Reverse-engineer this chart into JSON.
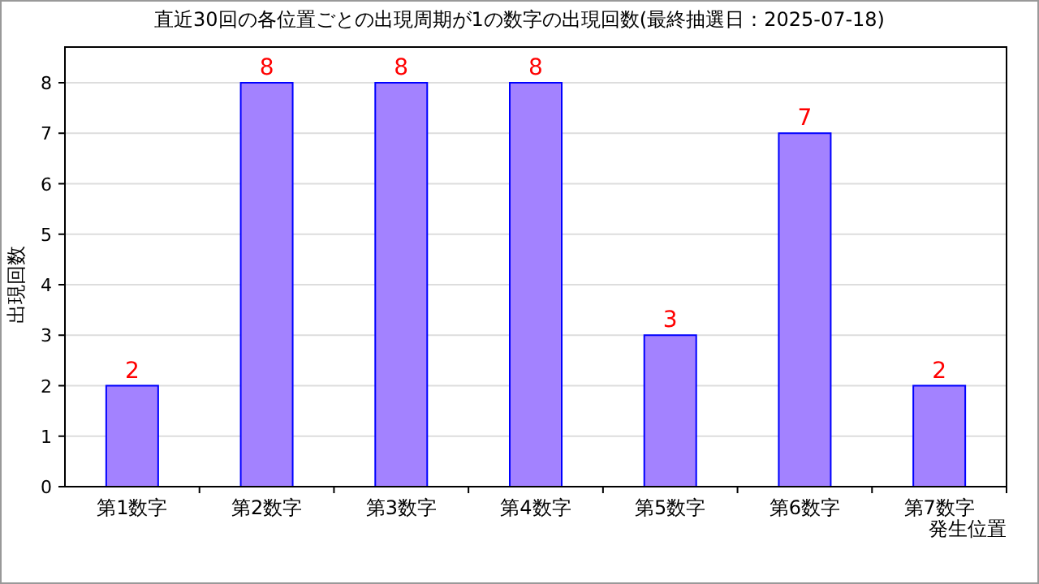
{
  "chart_data": {
    "type": "bar",
    "title": "直近30回の各位置ごとの出現周期が1の数字の出現回数(最終抽選日：2025-07-18)",
    "xlabel": "発生位置",
    "ylabel": "出現回数",
    "categories": [
      "第1数字",
      "第2数字",
      "第3数字",
      "第4数字",
      "第5数字",
      "第6数字",
      "第7数字"
    ],
    "values": [
      2,
      8,
      8,
      8,
      3,
      7,
      2
    ],
    "color": "#a382ff",
    "ylim": [
      0,
      8
    ],
    "yticks": [
      0,
      1,
      2,
      3,
      4,
      5,
      6,
      7,
      8
    ],
    "grid": "y",
    "data_labels": true
  }
}
